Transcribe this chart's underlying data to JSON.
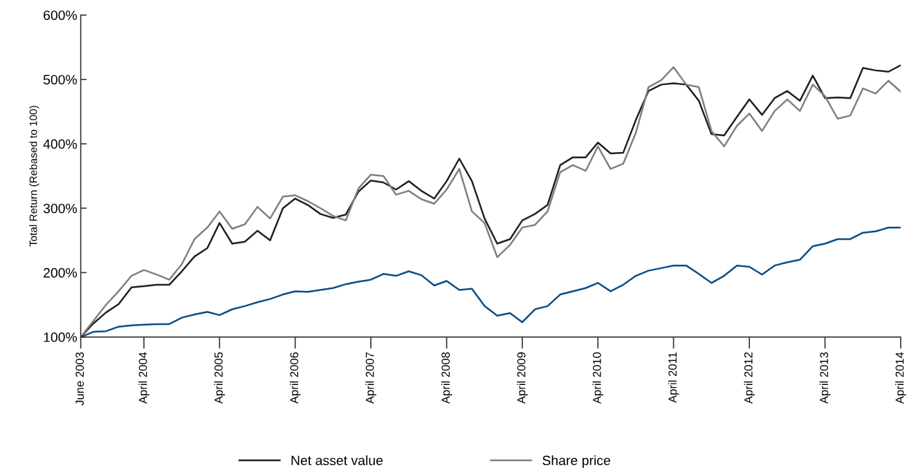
{
  "chart_data": {
    "type": "line",
    "ylabel": "Total Return (Rebased to 100)",
    "x": [
      "2003-06",
      "2003-08",
      "2003-10",
      "2003-12",
      "2004-02",
      "2004-04",
      "2004-06",
      "2004-08",
      "2004-10",
      "2004-12",
      "2005-02",
      "2005-04",
      "2005-06",
      "2005-08",
      "2005-10",
      "2005-12",
      "2006-02",
      "2006-04",
      "2006-06",
      "2006-08",
      "2006-10",
      "2006-12",
      "2007-02",
      "2007-04",
      "2007-06",
      "2007-08",
      "2007-10",
      "2007-12",
      "2008-02",
      "2008-04",
      "2008-06",
      "2008-08",
      "2008-10",
      "2008-12",
      "2009-02",
      "2009-04",
      "2009-06",
      "2009-08",
      "2009-10",
      "2009-12",
      "2010-02",
      "2010-04",
      "2010-06",
      "2010-08",
      "2010-10",
      "2010-12",
      "2011-02",
      "2011-04",
      "2011-06",
      "2011-08",
      "2011-10",
      "2011-12",
      "2012-02",
      "2012-04",
      "2012-06",
      "2012-08",
      "2012-10",
      "2012-12",
      "2013-02",
      "2013-04",
      "2013-06",
      "2013-08",
      "2013-10",
      "2013-12",
      "2014-02",
      "2014-04"
    ],
    "series": [
      {
        "name": "Net asset value",
        "color": "#231f20",
        "values": [
          100,
          121,
          138,
          151,
          177,
          179,
          181,
          181,
          202,
          225,
          238,
          277,
          245,
          248,
          265,
          250,
          300,
          315,
          305,
          291,
          285,
          290,
          326,
          343,
          340,
          329,
          342,
          327,
          315,
          342,
          377,
          342,
          284,
          245,
          252,
          281,
          291,
          305,
          367,
          379,
          379,
          402,
          385,
          386,
          437,
          482,
          492,
          494,
          492,
          467,
          415,
          413,
          442,
          469,
          445,
          471,
          482,
          467,
          506,
          471,
          472,
          471,
          518,
          514,
          512,
          522
        ]
      },
      {
        "name": "Share price",
        "color": "#7f7f7f",
        "values": [
          100,
          125,
          150,
          171,
          195,
          204,
          197,
          189,
          213,
          252,
          270,
          295,
          268,
          275,
          302,
          284,
          318,
          320,
          311,
          300,
          288,
          281,
          331,
          352,
          350,
          321,
          327,
          314,
          307,
          329,
          361,
          295,
          277,
          224,
          243,
          270,
          274,
          295,
          356,
          367,
          358,
          396,
          361,
          369,
          417,
          488,
          499,
          519,
          492,
          488,
          420,
          396,
          428,
          447,
          420,
          451,
          469,
          451,
          492,
          474,
          439,
          444,
          486,
          478,
          498,
          481
        ]
      },
      {
        "color": "#0b4d85",
        "values": [
          100,
          108,
          109,
          116,
          118,
          119,
          120,
          120,
          130,
          135,
          139,
          134,
          143,
          148,
          154,
          159,
          166,
          171,
          170,
          173,
          176,
          182,
          186,
          189,
          198,
          195,
          202,
          196,
          180,
          187,
          173,
          175,
          148,
          133,
          137,
          123,
          143,
          148,
          166,
          171,
          176,
          184,
          171,
          181,
          195,
          203,
          207,
          211,
          211,
          198,
          184,
          195,
          211,
          209,
          197,
          211,
          216,
          220,
          241,
          245,
          252,
          252,
          262,
          264,
          270,
          270
        ]
      }
    ],
    "xlim": [
      "2003-06",
      "2014-04"
    ],
    "xticks": [
      {
        "value": "2003-06",
        "label": "June 2003"
      },
      {
        "value": "2004-04",
        "label": "April 2004"
      },
      {
        "value": "2005-04",
        "label": "April 2005"
      },
      {
        "value": "2006-04",
        "label": "April 2006"
      },
      {
        "value": "2007-04",
        "label": "April 2007"
      },
      {
        "value": "2008-04",
        "label": "April 2008"
      },
      {
        "value": "2009-04",
        "label": "April 2009"
      },
      {
        "value": "2010-04",
        "label": "April 2010"
      },
      {
        "value": "2011-04",
        "label": "April 2011"
      },
      {
        "value": "2012-04",
        "label": "April 2012"
      },
      {
        "value": "2013-04",
        "label": "April 2013"
      },
      {
        "value": "2014-04",
        "label": "April 2014"
      }
    ],
    "ylim": [
      100,
      600
    ],
    "yticks": [
      {
        "value": 100,
        "label": "100%"
      },
      {
        "value": 200,
        "label": "200%"
      },
      {
        "value": 300,
        "label": "300%"
      },
      {
        "value": 400,
        "label": "400%"
      },
      {
        "value": 500,
        "label": "500%"
      },
      {
        "value": 600,
        "label": "600%"
      }
    ],
    "grid": false,
    "legend": "bottom",
    "marker": "none",
    "line_style": "solid"
  }
}
